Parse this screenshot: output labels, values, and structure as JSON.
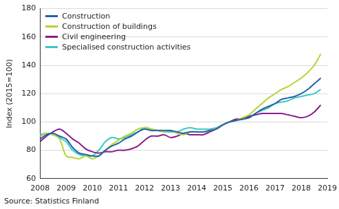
{
  "chart_data": {
    "type": "line",
    "ylabel": "Index (2015=100)",
    "source": "Source: Statistics Finland",
    "x": [
      2008,
      2008.25,
      2008.5,
      2008.75,
      2009,
      2009.25,
      2009.5,
      2009.75,
      2010,
      2010.25,
      2010.5,
      2010.75,
      2011,
      2011.25,
      2011.5,
      2011.75,
      2012,
      2012.25,
      2012.5,
      2012.75,
      2013,
      2013.25,
      2013.5,
      2013.75,
      2014,
      2014.25,
      2014.5,
      2014.75,
      2015,
      2015.25,
      2015.5,
      2015.75,
      2016,
      2016.25,
      2016.5,
      2016.75,
      2017,
      2017.25,
      2017.5,
      2017.75,
      2018,
      2018.25,
      2018.5,
      2018.75
    ],
    "series": [
      {
        "name": "Construction",
        "color": "#1f62a8",
        "values": [
          88,
          91,
          92,
          90,
          88,
          82,
          78,
          77,
          76,
          76,
          80,
          83,
          85,
          88,
          90,
          93,
          95,
          94,
          94,
          94,
          94,
          93,
          92,
          93,
          93,
          93,
          94,
          95,
          98,
          100,
          101,
          102,
          103,
          106,
          109,
          111,
          113,
          116,
          117,
          118,
          120,
          123,
          127,
          131
        ]
      },
      {
        "name": "Construction of buildings",
        "color": "#b6d433",
        "values": [
          90,
          92,
          91,
          88,
          76,
          75,
          74,
          76,
          74,
          76,
          80,
          84,
          87,
          90,
          92,
          95,
          96,
          95,
          94,
          93,
          94,
          92,
          91,
          93,
          93,
          93,
          94,
          95,
          98,
          100,
          101,
          103,
          105,
          109,
          113,
          117,
          120,
          123,
          125,
          128,
          131,
          135,
          140,
          148
        ]
      },
      {
        "name": "Civil engineering",
        "color": "#8c1a8c",
        "values": [
          86,
          90,
          93,
          95,
          92,
          88,
          85,
          81,
          79,
          78,
          79,
          79,
          80,
          80,
          81,
          83,
          87,
          90,
          90,
          91,
          89,
          90,
          92,
          91,
          91,
          91,
          93,
          95,
          98,
          100,
          102,
          102,
          104,
          105,
          106,
          106,
          106,
          106,
          105,
          104,
          103,
          104,
          107,
          112
        ]
      },
      {
        "name": "Specialised construction activities",
        "color": "#3cc8c8",
        "values": [
          91,
          92,
          91,
          89,
          86,
          80,
          77,
          76,
          76,
          80,
          86,
          89,
          88,
          89,
          91,
          93,
          96,
          95,
          94,
          93,
          93,
          93,
          95,
          96,
          95,
          95,
          95,
          96,
          98,
          100,
          101,
          102,
          103,
          106,
          108,
          110,
          113,
          114,
          115,
          117,
          118,
          119,
          120,
          123
        ]
      }
    ],
    "xlim": [
      2008,
      2019
    ],
    "xticks": [
      2008,
      2009,
      2010,
      2011,
      2012,
      2013,
      2014,
      2015,
      2016,
      2017,
      2018,
      2019
    ],
    "ylim": [
      60,
      180
    ],
    "yticks": [
      60,
      80,
      100,
      120,
      140,
      160,
      180
    ],
    "grid": true,
    "legend": "upper left",
    "marker": "none",
    "line_style": "solid"
  }
}
